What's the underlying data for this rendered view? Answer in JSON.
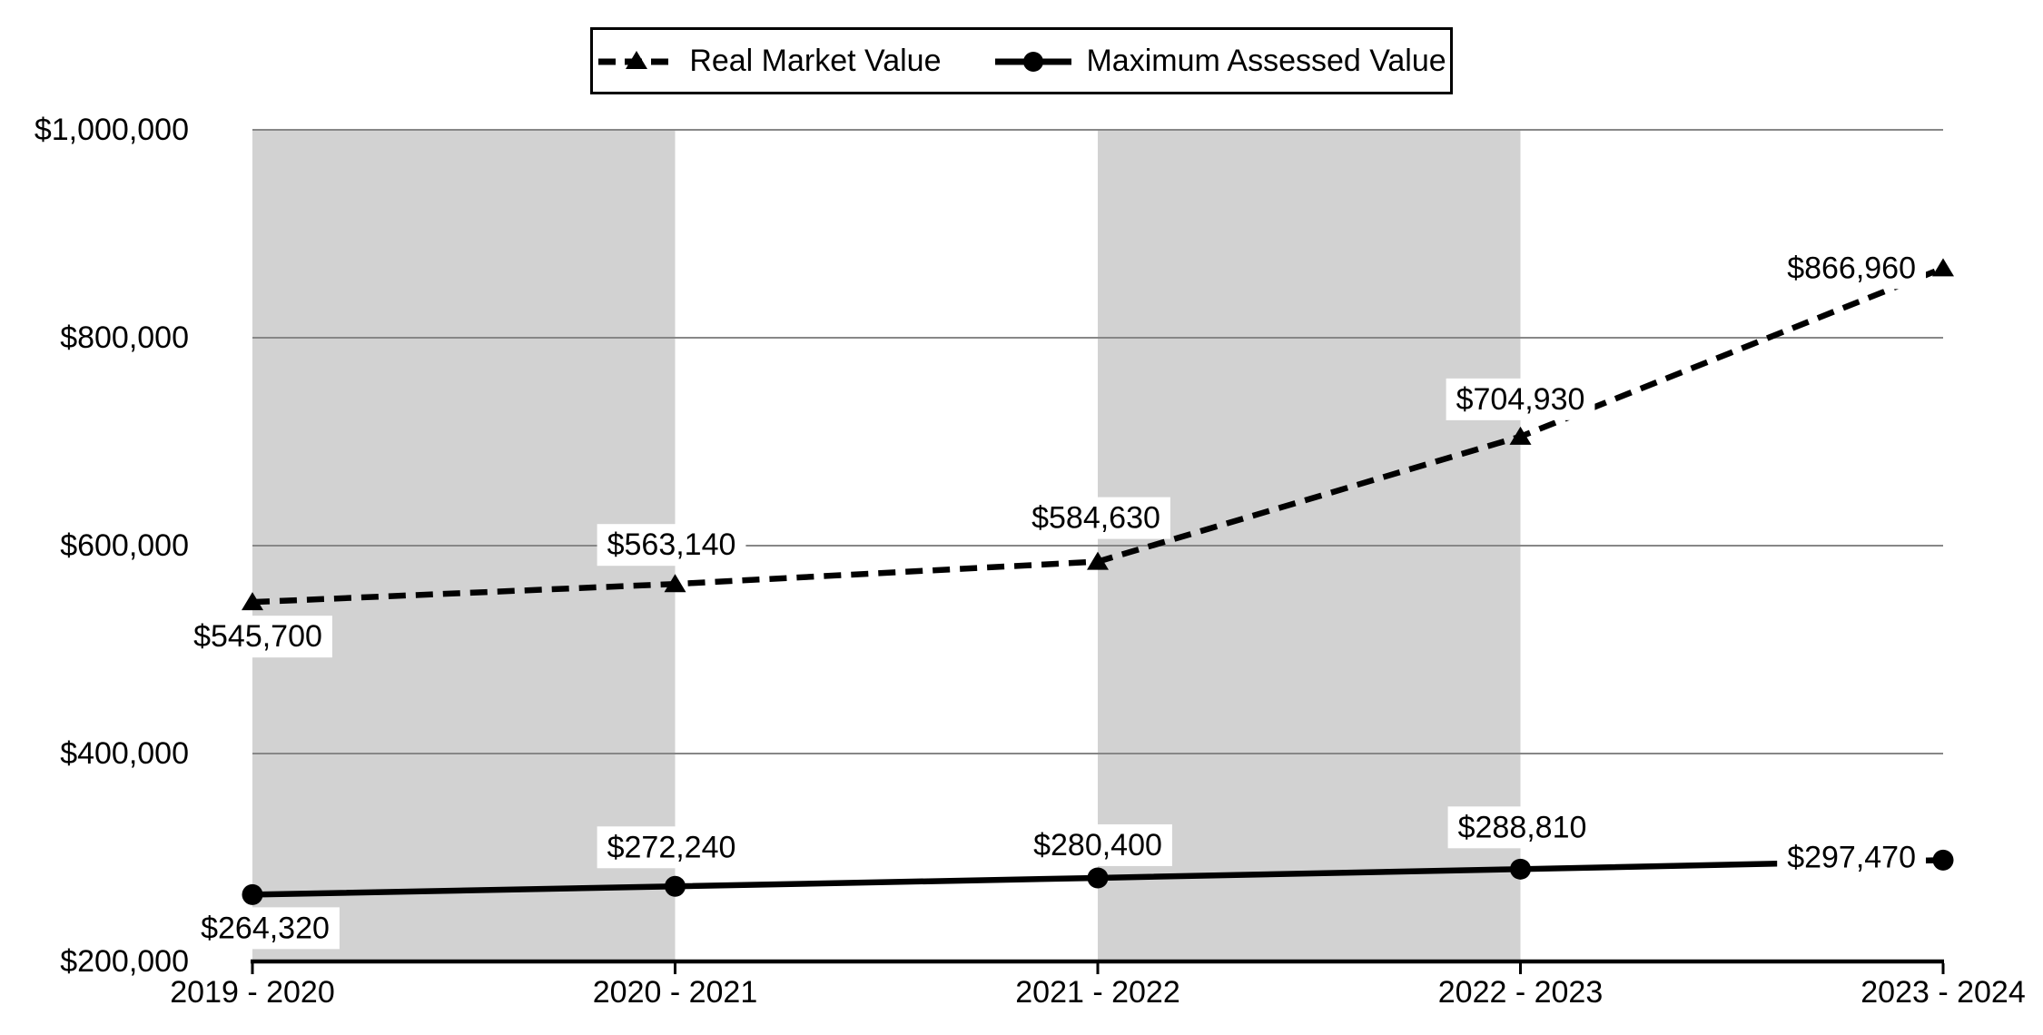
{
  "chart_data": {
    "type": "line",
    "title": "",
    "categories": [
      "2019 - 2020",
      "2020 - 2021",
      "2021 - 2022",
      "2022 - 2023",
      "2023 - 2024"
    ],
    "series": [
      {
        "name": "Real Market Value",
        "line_style": "dashed",
        "marker": "triangle",
        "values": [
          545700,
          563140,
          584630,
          704930,
          866960
        ],
        "labels": [
          "$545,700",
          "$563,140",
          "$584,630",
          "$704,930",
          "$866,960"
        ]
      },
      {
        "name": "Maximum Assessed Value",
        "line_style": "solid",
        "marker": "circle",
        "values": [
          264320,
          272240,
          280400,
          288810,
          297470
        ],
        "labels": [
          "$264,320",
          "$272,240",
          "$280,400",
          "$288,810",
          "$297,470"
        ]
      }
    ],
    "y_axis": {
      "min": 200000,
      "max": 1000000,
      "step": 200000,
      "tick_labels": [
        "$200,000",
        "$400,000",
        "$600,000",
        "$800,000",
        "$1,000,000"
      ]
    },
    "x_axis": {
      "tick_labels": [
        "2019 - 2020",
        "2020 - 2021",
        "2021 - 2022",
        "2022 - 2023",
        "2023 - 2024"
      ]
    },
    "plot_bands_between_categories": [
      [
        0,
        1
      ],
      [
        2,
        3
      ]
    ],
    "legend_position": "top",
    "grid": "horizontal",
    "colors": {
      "series": "#000000",
      "gridline": "#878787",
      "band": "#D2D2D2",
      "axis": "#000000",
      "label_background": "#FFFFFF",
      "background": "#FFFFFF",
      "text": "#000000"
    }
  }
}
